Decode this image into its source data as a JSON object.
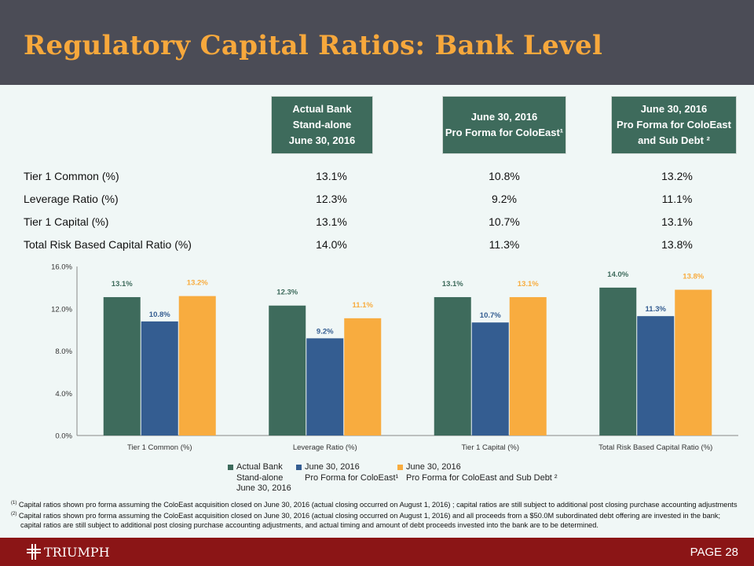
{
  "title": "Regulatory Capital Ratios: Bank Level",
  "columns": [
    "Actual Bank\nStand-alone\nJune 30, 2016",
    "June 30, 2016\nPro Forma for ColoEast¹",
    "June 30, 2016\nPro Forma for ColoEast\nand Sub Debt ²"
  ],
  "rows": [
    {
      "label": "Tier 1 Common (%)",
      "values": [
        "13.1%",
        "10.8%",
        "13.2%"
      ]
    },
    {
      "label": "Leverage Ratio (%)",
      "values": [
        "12.3%",
        "9.2%",
        "11.1%"
      ]
    },
    {
      "label": "Tier 1 Capital (%)",
      "values": [
        "13.1%",
        "10.7%",
        "13.1%"
      ]
    },
    {
      "label": "Total Risk Based Capital Ratio (%)",
      "values": [
        "14.0%",
        "11.3%",
        "13.8%"
      ]
    }
  ],
  "chart_data": {
    "type": "bar",
    "categories": [
      "Tier 1 Common (%)",
      "Leverage Ratio (%)",
      "Tier 1 Capital (%)",
      "Total Risk Based Capital Ratio (%)"
    ],
    "series": [
      {
        "name": "Actual Bank Stand-alone June 30, 2016",
        "legend_lines": [
          "Actual Bank",
          "Stand-alone",
          "June 30, 2016"
        ],
        "color": "#3e6b5c",
        "label_color": "#3e6b5c",
        "values": [
          13.1,
          12.3,
          13.1,
          14.0
        ]
      },
      {
        "name": "June 30, 2016 Pro Forma for ColoEast¹",
        "legend_lines": [
          "June 30, 2016",
          "Pro Forma for ColoEast¹"
        ],
        "color": "#345d91",
        "label_color": "#345d91",
        "values": [
          10.8,
          9.2,
          10.7,
          11.3
        ]
      },
      {
        "name": "June 30, 2016 Pro Forma for ColoEast and Sub Debt ²",
        "legend_lines": [
          "June 30, 2016",
          "Pro Forma for ColoEast and Sub Debt ²"
        ],
        "color": "#f8ac3f",
        "label_color": "#f8ac3f",
        "values": [
          13.2,
          11.1,
          13.1,
          13.8
        ]
      }
    ],
    "yticks": [
      "0.0%",
      "4.0%",
      "8.0%",
      "12.0%",
      "16.0%"
    ],
    "ylim": [
      0,
      16
    ],
    "grid": false,
    "legend": "bottom"
  },
  "notes": [
    {
      "mark": "(1)",
      "text": "Capital ratios shown pro forma assuming the ColoEast acquisition closed on June 30, 2016 (actual closing occurred on August 1, 2016) ; capital ratios are still subject to additional post closing purchase accounting adjustments"
    },
    {
      "mark": "(2)",
      "text": "Capital ratios shown pro forma assuming the ColoEast acquisition closed on June 30, 2016 (actual closing occurred on August 1, 2016) and all proceeds from a $50.0M subordinated debt offering are invested in the bank; capital ratios are still subject to additional post closing purchase accounting adjustments, and actual timing and amount of debt proceeds invested into the bank are to be determined."
    }
  ],
  "footer": {
    "logo": "TRIUMPH",
    "page": "PAGE 28"
  }
}
